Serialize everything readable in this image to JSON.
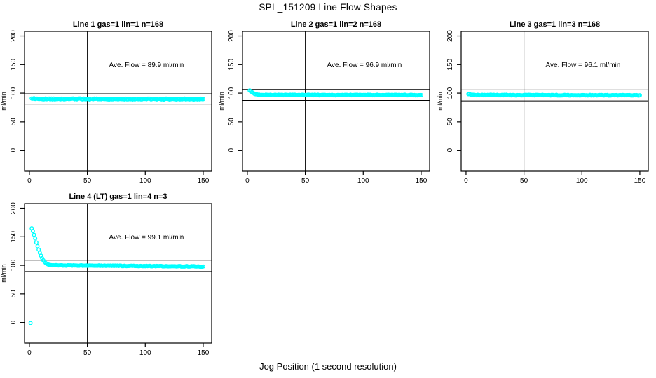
{
  "page": {
    "title": "SPL_151209  Line Flow Shapes",
    "xlabel": "Jog Position (1 second resolution)",
    "background": "#ffffff",
    "point_color": "#00FFFF",
    "axis_color": "#000000"
  },
  "chart_data": [
    {
      "type": "scatter",
      "title": "Line 1 gas=1 lin=1 n=168",
      "line": 1,
      "gas": 1,
      "lin": 1,
      "n": 168,
      "ave_flow": 89.9,
      "annotation": "Ave. Flow =  89.9  ml/min",
      "annotation_pos": [
        101,
        150
      ],
      "ylabel": "ml/min",
      "x_ticks": [
        0,
        50,
        100,
        150
      ],
      "y_ticks": [
        0,
        50,
        100,
        150,
        200
      ],
      "xlim": [
        -4.2,
        157.3
      ],
      "ylim": [
        -36,
        208
      ],
      "hlines": [
        98.9,
        80.9
      ],
      "vline": 50,
      "points": [],
      "series_profile": [
        [
          2,
          91.3
        ],
        [
          3,
          90.8
        ],
        [
          5,
          90.2
        ],
        [
          8,
          90.0
        ],
        [
          150,
          89.7
        ]
      ],
      "jitter": 0.8,
      "grid": false,
      "legend": "none",
      "marker": "open-circle"
    },
    {
      "type": "scatter",
      "title": "Line 2 gas=1 lin=2 n=168",
      "line": 2,
      "gas": 1,
      "lin": 2,
      "n": 168,
      "ave_flow": 96.9,
      "annotation": "Ave. Flow =  96.9  ml/min",
      "annotation_pos": [
        101,
        150
      ],
      "ylabel": "ml/min",
      "x_ticks": [
        0,
        50,
        100,
        150
      ],
      "y_ticks": [
        0,
        50,
        100,
        150,
        200
      ],
      "xlim": [
        -4.2,
        157.3
      ],
      "ylim": [
        -36,
        208
      ],
      "hlines": [
        106.6,
        87.2
      ],
      "vline": 50,
      "points": [],
      "series_profile": [
        [
          2,
          104.8
        ],
        [
          3,
          103.2
        ],
        [
          4,
          101.6
        ],
        [
          5,
          100.2
        ],
        [
          6,
          99.2
        ],
        [
          7,
          98.3
        ],
        [
          8,
          97.7
        ],
        [
          10,
          97.1
        ],
        [
          14,
          96.8
        ],
        [
          150,
          96.6
        ]
      ],
      "jitter": 0.55,
      "grid": false,
      "legend": "none",
      "marker": "open-circle"
    },
    {
      "type": "scatter",
      "title": "Line 3 gas=1 lin=3 n=168",
      "line": 3,
      "gas": 1,
      "lin": 3,
      "n": 168,
      "ave_flow": 96.1,
      "annotation": "Ave. Flow =  96.1  ml/min",
      "annotation_pos": [
        101,
        150
      ],
      "ylabel": "ml/min",
      "x_ticks": [
        0,
        50,
        100,
        150
      ],
      "y_ticks": [
        0,
        50,
        100,
        150,
        200
      ],
      "xlim": [
        -4.2,
        157.3
      ],
      "ylim": [
        -36,
        208
      ],
      "hlines": [
        105.7,
        86.5
      ],
      "vline": 50,
      "points": [],
      "series_profile": [
        [
          2,
          98.3
        ],
        [
          3,
          97.9
        ],
        [
          4,
          97.2
        ],
        [
          6,
          96.7
        ],
        [
          150,
          96.2
        ]
      ],
      "jitter": 0.55,
      "grid": false,
      "legend": "none",
      "marker": "open-circle"
    },
    {
      "type": "scatter",
      "title": "Line 4 (LT) gas=1 lin=4 n=3",
      "line": 4,
      "gas": 1,
      "lin": 4,
      "n": 3,
      "ave_flow": 99.1,
      "annotation": "Ave. Flow =  99.1  ml/min",
      "annotation_pos": [
        101,
        150
      ],
      "ylabel": "ml/min",
      "x_ticks": [
        0,
        50,
        100,
        150
      ],
      "y_ticks": [
        0,
        50,
        100,
        150,
        200
      ],
      "xlim": [
        -4.2,
        157.3
      ],
      "ylim": [
        -36,
        208
      ],
      "hlines": [
        109.0,
        89.2
      ],
      "vline": 50,
      "points": [
        [
          1,
          -1
        ],
        [
          2,
          165
        ],
        [
          3,
          160
        ],
        [
          4,
          153.5
        ],
        [
          5,
          147
        ],
        [
          6,
          140
        ],
        [
          7,
          133.5
        ],
        [
          8,
          127.5
        ],
        [
          9,
          122
        ],
        [
          10,
          117
        ],
        [
          11,
          112.5
        ],
        [
          12,
          109
        ],
        [
          13,
          106.3
        ],
        [
          14,
          104.2
        ],
        [
          15,
          102.7
        ],
        [
          16,
          101.7
        ],
        [
          17,
          101
        ],
        [
          18,
          100.5
        ],
        [
          19,
          100.2
        ],
        [
          20,
          100
        ]
      ],
      "series_profile": [
        [
          21,
          100
        ],
        [
          40,
          99.7
        ],
        [
          80,
          99.1
        ],
        [
          120,
          98.5
        ],
        [
          150,
          97.9
        ]
      ],
      "jitter": 0.5,
      "grid": false,
      "legend": "none",
      "marker": "open-circle"
    }
  ]
}
